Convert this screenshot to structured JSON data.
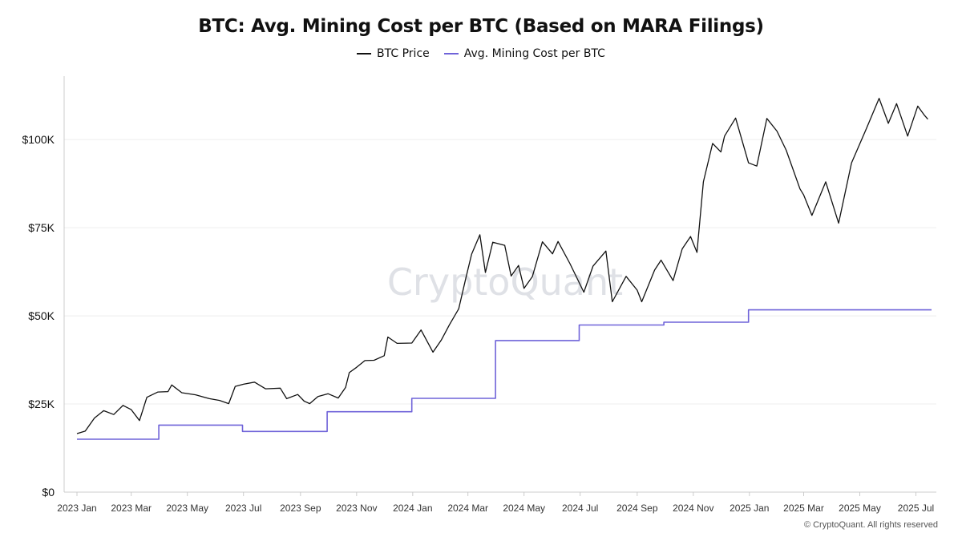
{
  "chart_data": {
    "type": "line",
    "title": "BTC: Avg. Mining Cost per BTC (Based on MARA Filings)",
    "xlabel": "",
    "ylabel": "",
    "ylim": [
      0,
      118000
    ],
    "y_ticks": [
      0,
      25000,
      50000,
      75000,
      100000
    ],
    "y_tick_labels": [
      "$0",
      "$25K",
      "$50K",
      "$75K",
      "$100K"
    ],
    "x_range": [
      "2023-01-01",
      "2025-07-18"
    ],
    "x_ticks": [
      "2023-01-01",
      "2023-03-01",
      "2023-05-01",
      "2023-07-01",
      "2023-09-01",
      "2023-11-01",
      "2024-01-01",
      "2024-03-01",
      "2024-05-01",
      "2024-07-01",
      "2024-09-01",
      "2024-11-01",
      "2025-01-01",
      "2025-03-01",
      "2025-05-01",
      "2025-07-01"
    ],
    "x_tick_labels": [
      "2023 Jan",
      "2023 Mar",
      "2023 May",
      "2023 Jul",
      "2023 Sep",
      "2023 Nov",
      "2024 Jan",
      "2024 Mar",
      "2024 May",
      "2024 Jul",
      "2024 Sep",
      "2024 Nov",
      "2025 Jan",
      "2025 Mar",
      "2025 May",
      "2025 Jul"
    ],
    "grid": "horizontal",
    "legend_position": "top-center",
    "watermark": "CryptoQuant",
    "series": [
      {
        "name": "BTC Price",
        "color": "#111111",
        "points": [
          [
            "2023-01-01",
            16600
          ],
          [
            "2023-01-10",
            17300
          ],
          [
            "2023-01-20",
            21000
          ],
          [
            "2023-01-30",
            23100
          ],
          [
            "2023-02-10",
            22000
          ],
          [
            "2023-02-20",
            24600
          ],
          [
            "2023-03-01",
            23400
          ],
          [
            "2023-03-10",
            20300
          ],
          [
            "2023-03-18",
            26900
          ],
          [
            "2023-03-30",
            28400
          ],
          [
            "2023-04-10",
            28500
          ],
          [
            "2023-04-14",
            30400
          ],
          [
            "2023-04-25",
            28200
          ],
          [
            "2023-05-10",
            27600
          ],
          [
            "2023-05-25",
            26500
          ],
          [
            "2023-06-05",
            26000
          ],
          [
            "2023-06-15",
            25100
          ],
          [
            "2023-06-22",
            30000
          ],
          [
            "2023-07-01",
            30600
          ],
          [
            "2023-07-13",
            31200
          ],
          [
            "2023-07-25",
            29300
          ],
          [
            "2023-08-10",
            29500
          ],
          [
            "2023-08-17",
            26500
          ],
          [
            "2023-08-29",
            27700
          ],
          [
            "2023-09-05",
            25800
          ],
          [
            "2023-09-11",
            25100
          ],
          [
            "2023-09-20",
            27100
          ],
          [
            "2023-10-01",
            27900
          ],
          [
            "2023-10-12",
            26700
          ],
          [
            "2023-10-20",
            29700
          ],
          [
            "2023-10-24",
            33900
          ],
          [
            "2023-11-01",
            35400
          ],
          [
            "2023-11-10",
            37300
          ],
          [
            "2023-11-20",
            37400
          ],
          [
            "2023-12-01",
            38700
          ],
          [
            "2023-12-05",
            44000
          ],
          [
            "2023-12-15",
            42200
          ],
          [
            "2023-12-31",
            42300
          ],
          [
            "2024-01-10",
            46000
          ],
          [
            "2024-01-23",
            39700
          ],
          [
            "2024-02-01",
            43100
          ],
          [
            "2024-02-10",
            47500
          ],
          [
            "2024-02-20",
            52000
          ],
          [
            "2024-02-28",
            61000
          ],
          [
            "2024-03-05",
            67500
          ],
          [
            "2024-03-14",
            73000
          ],
          [
            "2024-03-20",
            62300
          ],
          [
            "2024-03-28",
            70900
          ],
          [
            "2024-04-10",
            70000
          ],
          [
            "2024-04-17",
            61300
          ],
          [
            "2024-04-25",
            64300
          ],
          [
            "2024-05-01",
            57800
          ],
          [
            "2024-05-10",
            61100
          ],
          [
            "2024-05-21",
            71000
          ],
          [
            "2024-06-01",
            67600
          ],
          [
            "2024-06-07",
            71100
          ],
          [
            "2024-06-20",
            64800
          ],
          [
            "2024-07-05",
            56700
          ],
          [
            "2024-07-15",
            64100
          ],
          [
            "2024-07-29",
            68400
          ],
          [
            "2024-08-05",
            54000
          ],
          [
            "2024-08-20",
            61200
          ],
          [
            "2024-09-01",
            57300
          ],
          [
            "2024-09-06",
            54000
          ],
          [
            "2024-09-20",
            63000
          ],
          [
            "2024-09-27",
            65800
          ],
          [
            "2024-10-10",
            60000
          ],
          [
            "2024-10-20",
            69000
          ],
          [
            "2024-10-29",
            72500
          ],
          [
            "2024-11-05",
            68000
          ],
          [
            "2024-11-12",
            88000
          ],
          [
            "2024-11-22",
            98900
          ],
          [
            "2024-12-01",
            96500
          ],
          [
            "2024-12-05",
            101000
          ],
          [
            "2024-12-17",
            106100
          ],
          [
            "2024-12-31",
            93400
          ],
          [
            "2025-01-09",
            92500
          ],
          [
            "2025-01-20",
            106000
          ],
          [
            "2025-01-31",
            102400
          ],
          [
            "2025-02-10",
            97000
          ],
          [
            "2025-02-25",
            86000
          ],
          [
            "2025-03-01",
            84300
          ],
          [
            "2025-03-10",
            78500
          ],
          [
            "2025-03-25",
            88000
          ],
          [
            "2025-04-08",
            76300
          ],
          [
            "2025-04-22",
            93400
          ],
          [
            "2025-05-08",
            103000
          ],
          [
            "2025-05-22",
            111700
          ],
          [
            "2025-06-01",
            104600
          ],
          [
            "2025-06-10",
            110200
          ],
          [
            "2025-06-22",
            101000
          ],
          [
            "2025-07-03",
            109500
          ],
          [
            "2025-07-10",
            107000
          ],
          [
            "2025-07-14",
            105800
          ]
        ]
      },
      {
        "name": "Avg. Mining Cost per BTC",
        "color": "#6f63d9",
        "style": "step",
        "points": [
          [
            "2023-01-01",
            15000
          ],
          [
            "2023-03-31",
            19000
          ],
          [
            "2023-06-30",
            17200
          ],
          [
            "2023-09-30",
            22800
          ],
          [
            "2023-12-31",
            26600
          ],
          [
            "2024-03-31",
            43000
          ],
          [
            "2024-06-30",
            47400
          ],
          [
            "2024-09-30",
            48200
          ],
          [
            "2024-12-31",
            51700
          ],
          [
            "2025-07-18",
            51700
          ]
        ]
      }
    ]
  },
  "footer": {
    "copyright": "© CryptoQuant. All rights reserved"
  }
}
